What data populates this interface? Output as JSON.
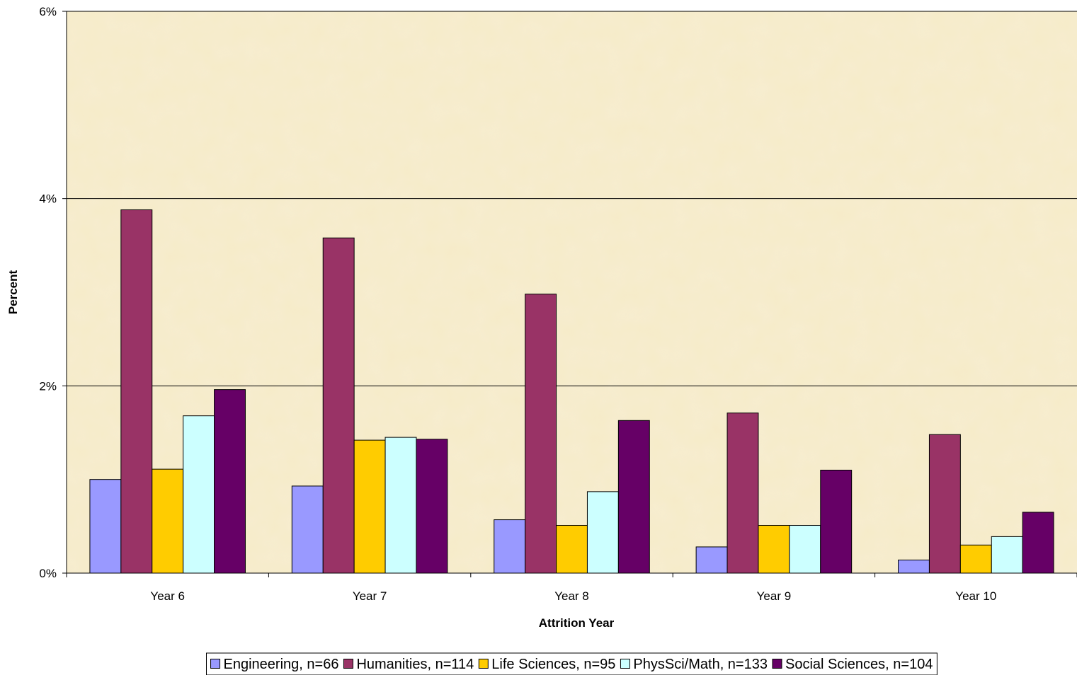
{
  "chart_data": {
    "type": "bar",
    "xlabel": "Attrition Year",
    "ylabel": "Percent",
    "ylim": [
      0,
      6
    ],
    "y_ticks": [
      "0%",
      "2%",
      "4%",
      "6%"
    ],
    "y_tick_values": [
      0,
      2,
      4,
      6
    ],
    "grid": true,
    "legend_position": "bottom",
    "background_color": "#f6ebc8",
    "categories": [
      "Year 6",
      "Year 7",
      "Year 8",
      "Year 9",
      "Year 10"
    ],
    "series": [
      {
        "name": "Engineering, n=66",
        "color": "#9999ff",
        "values": [
          1.0,
          0.93,
          0.57,
          0.28,
          0.14
        ]
      },
      {
        "name": "Humanities, n=114",
        "color": "#993366",
        "values": [
          3.88,
          3.58,
          2.98,
          1.71,
          1.48
        ]
      },
      {
        "name": "Life Sciences, n=95",
        "color": "#ffcc00",
        "values": [
          1.11,
          1.42,
          0.51,
          0.51,
          0.3
        ]
      },
      {
        "name": "PhysSci/Math, n=133",
        "color": "#ccffff",
        "values": [
          1.68,
          1.45,
          0.87,
          0.51,
          0.39
        ]
      },
      {
        "name": "Social Sciences, n=104",
        "color": "#660066",
        "values": [
          1.96,
          1.43,
          1.63,
          1.1,
          0.65
        ]
      }
    ]
  }
}
